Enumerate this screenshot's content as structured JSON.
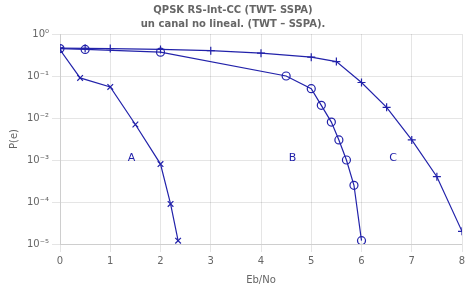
{
  "chart_data": {
    "type": "line",
    "title": "QPSK RS-Int-CC (TWT- SSPA)",
    "subtitle": "un canal no lineal. (TWT – SSPA).",
    "xlabel": "Eb/No",
    "ylabel": "P(e)",
    "log": "y",
    "grid": true,
    "color": "#2222aa",
    "xlim": [
      0,
      8
    ],
    "xticks": [
      0,
      1,
      2,
      3,
      4,
      5,
      6,
      7,
      8
    ],
    "ylim": [
      1e-05,
      1
    ],
    "yticks": [
      {
        "value": 1e-05,
        "label": "10⁻⁵"
      },
      {
        "value": 0.0001,
        "label": "10⁻⁴"
      },
      {
        "value": 0.001,
        "label": "10⁻³"
      },
      {
        "value": 0.01,
        "label": "10⁻²"
      },
      {
        "value": 0.1,
        "label": "10⁻¹"
      },
      {
        "value": 1,
        "label": "10⁰"
      }
    ],
    "series": [
      {
        "marker": "x",
        "x": [
          0.0,
          0.4,
          1.0,
          1.5,
          2.0,
          2.2,
          2.35
        ],
        "values": [
          0.42,
          0.09,
          0.055,
          0.007,
          0.0008,
          9e-05,
          1.2e-05
        ]
      },
      {
        "marker": "circle",
        "x": [
          0.0,
          0.5,
          2.0,
          4.5,
          5.0,
          5.2,
          5.4,
          5.55,
          5.7,
          5.85,
          6.0
        ],
        "values": [
          0.45,
          0.43,
          0.37,
          0.1,
          0.05,
          0.02,
          0.008,
          0.003,
          0.001,
          0.00025,
          1.2e-05
        ]
      },
      {
        "marker": "plus",
        "x": [
          0.0,
          0.5,
          1.0,
          2.0,
          3.0,
          4.0,
          5.0,
          5.5,
          6.0,
          6.5,
          7.0,
          7.5,
          8.0
        ],
        "values": [
          0.46,
          0.455,
          0.45,
          0.43,
          0.4,
          0.35,
          0.28,
          0.22,
          0.07,
          0.018,
          0.003,
          0.0004,
          2e-05
        ]
      }
    ],
    "annotations": [
      {
        "text": "A",
        "x": 1.35,
        "y": 0.00095
      },
      {
        "text": "B",
        "x": 4.55,
        "y": 0.00095
      },
      {
        "text": "C",
        "x": 6.55,
        "y": 0.00095
      }
    ]
  }
}
